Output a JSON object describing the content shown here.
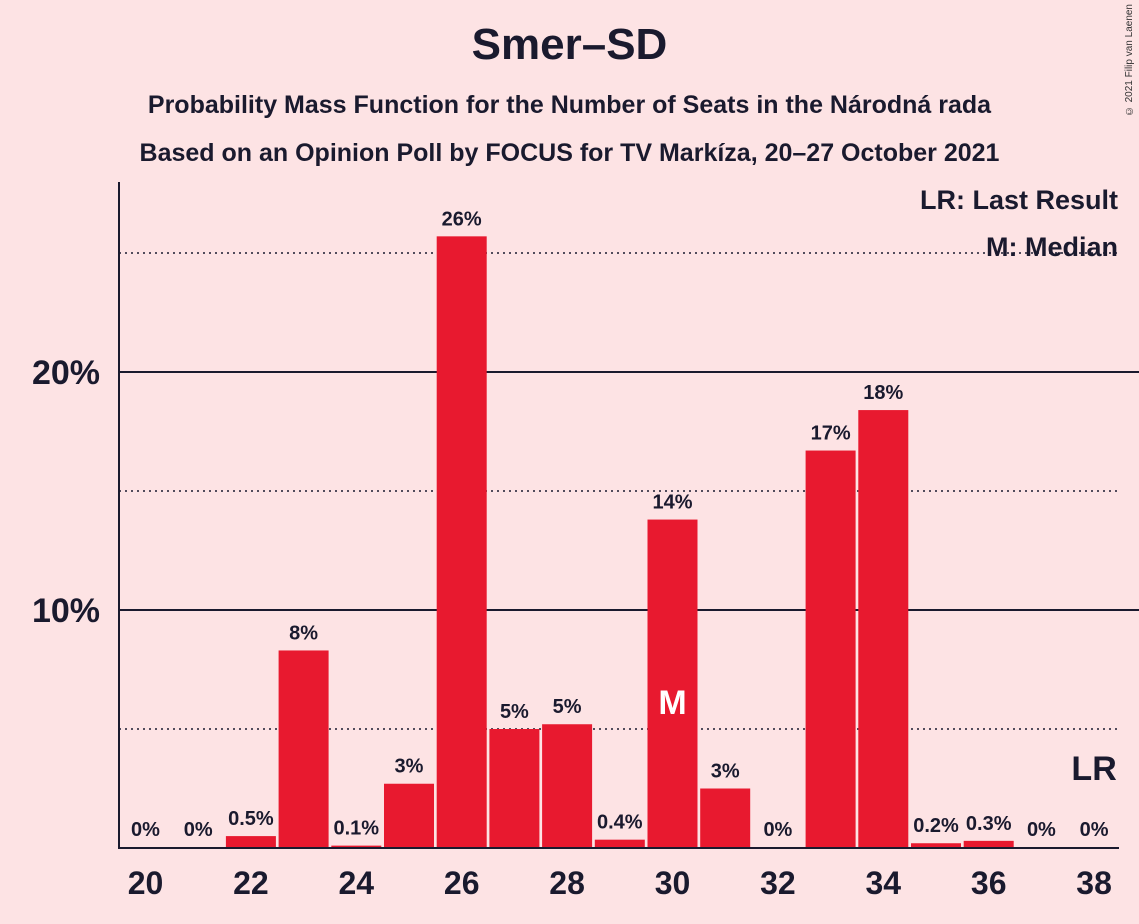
{
  "copyright": "© 2021 Filip van Laenen",
  "chart_data": {
    "type": "bar",
    "title": "Smer–SD",
    "subtitle_1": "Probability Mass Function for the Number of Seats in the Národná rada",
    "subtitle_2": "Based on an Opinion Poll by FOCUS for TV Markíza, 20–27 October 2021",
    "legend": [
      "LR: Last Result",
      "M: Median"
    ],
    "seats": [
      20,
      21,
      22,
      23,
      24,
      25,
      26,
      27,
      28,
      29,
      30,
      31,
      32,
      33,
      34,
      35,
      36,
      37,
      38
    ],
    "values": [
      0,
      0,
      0.5,
      8.3,
      0.1,
      2.7,
      25.7,
      5.0,
      5.2,
      0.35,
      13.8,
      2.5,
      0,
      16.7,
      18.4,
      0.2,
      0.3,
      0,
      0
    ],
    "value_labels": [
      "0%",
      "0%",
      "0.5%",
      "8%",
      "0.1%",
      "3%",
      "26%",
      "5%",
      "5%",
      "0.4%",
      "14%",
      "3%",
      "0%",
      "17%",
      "18%",
      "0.2%",
      "0.3%",
      "0%",
      "0%"
    ],
    "x_tick_labels": [
      "20",
      "22",
      "24",
      "26",
      "28",
      "30",
      "32",
      "34",
      "36",
      "38"
    ],
    "y_tick_labels": [
      "10%",
      "20%"
    ],
    "ylim": [
      0,
      28
    ],
    "grid_solid": [
      10,
      20
    ],
    "grid_dotted": [
      5,
      15,
      25
    ],
    "median_seat": 30,
    "median_marker": "M",
    "last_result_seat": 38,
    "last_result_marker": "LR",
    "bar_color": "#e8192f",
    "background_color": "#fde3e4"
  }
}
